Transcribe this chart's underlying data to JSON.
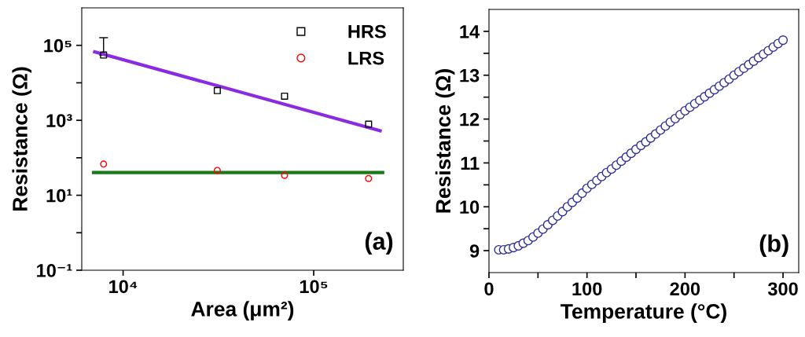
{
  "chart_data": [
    {
      "type": "scatter",
      "xlabel": "Area (μm²)",
      "ylabel": "Resistance (Ω)",
      "log": "xy",
      "xlim": [
        6070,
        295000
      ],
      "ylim": [
        0.1,
        1000000
      ],
      "xticks": [
        {
          "value": 10000,
          "label": "10⁴"
        },
        {
          "value": 100000,
          "label": "10⁵"
        }
      ],
      "yticks": [
        {
          "value": 0.1,
          "label": "10⁻¹"
        },
        {
          "value": 1,
          "label": null
        },
        {
          "value": 10,
          "label": "10¹"
        },
        {
          "value": 100,
          "label": null
        },
        {
          "value": 1000,
          "label": "10³"
        },
        {
          "value": 10000,
          "label": null
        },
        {
          "value": 100000,
          "label": "10⁵"
        }
      ],
      "x": [
        7900,
        31200,
        70300,
        194000
      ],
      "legend": "top right",
      "grid": false,
      "series": [
        {
          "name": "HRS",
          "type": "scatter",
          "marker": "square",
          "color": "#000000",
          "values": [
            55000,
            6200,
            4400,
            790
          ],
          "errors": [
            [
              55000,
              160000
            ],
            null,
            null,
            null
          ]
        },
        {
          "name": "LRS",
          "type": "scatter",
          "marker": "circle",
          "color": "#ff0000",
          "values": [
            68,
            46,
            34,
            28
          ]
        },
        {
          "type": "line",
          "color": "#8a2be2",
          "x": [
            7100,
            223000
          ],
          "values": [
            67000,
            525
          ]
        },
        {
          "type": "line",
          "color": "#1a7a1a",
          "x": [
            7000,
            230000
          ],
          "values": [
            40.5,
            40.5
          ]
        }
      ],
      "annotations": [
        "(a)"
      ]
    },
    {
      "type": "scatter",
      "xlabel": "Temperature (°C)",
      "ylabel": "Resistance (Ω)",
      "xlim": [
        0,
        316
      ],
      "ylim": [
        8.5,
        14.5
      ],
      "xticks": [
        0,
        {
          "value": 50,
          "label": null
        },
        100,
        {
          "value": 150,
          "label": null
        },
        200,
        {
          "value": 250,
          "label": null
        },
        300
      ],
      "yticks": [
        9,
        {
          "value": 9.5,
          "label": null
        },
        10,
        {
          "value": 10.5,
          "label": null
        },
        11,
        {
          "value": 11.5,
          "label": null
        },
        12,
        {
          "value": 12.5,
          "label": null
        },
        13,
        {
          "value": 13.5,
          "label": null
        },
        14
      ],
      "marker": "circle",
      "grid": false,
      "legend": false,
      "series": [
        {
          "color": "#2e2e9a",
          "x": [
            10,
            15,
            20,
            25,
            30,
            35,
            40,
            45,
            50,
            55,
            60,
            65,
            70,
            75,
            80,
            85,
            90,
            95,
            100,
            105,
            110,
            115,
            120,
            125,
            130,
            135,
            140,
            145,
            150,
            155,
            160,
            165,
            170,
            175,
            180,
            185,
            190,
            195,
            200,
            205,
            210,
            215,
            220,
            225,
            230,
            235,
            240,
            245,
            250,
            255,
            260,
            265,
            270,
            275,
            280,
            285,
            290,
            295,
            300
          ],
          "values": [
            9.02,
            9.02,
            9.04,
            9.07,
            9.11,
            9.17,
            9.23,
            9.31,
            9.4,
            9.49,
            9.59,
            9.69,
            9.79,
            9.89,
            10.0,
            10.1,
            10.2,
            10.31,
            10.42,
            10.51,
            10.6,
            10.69,
            10.78,
            10.86,
            10.95,
            11.04,
            11.13,
            11.22,
            11.31,
            11.4,
            11.48,
            11.57,
            11.66,
            11.75,
            11.84,
            11.93,
            12.01,
            12.1,
            12.19,
            12.27,
            12.35,
            12.43,
            12.51,
            12.59,
            12.67,
            12.75,
            12.83,
            12.91,
            13.0,
            13.08,
            13.16,
            13.24,
            13.32,
            13.4,
            13.48,
            13.56,
            13.64,
            13.72,
            13.8
          ]
        }
      ],
      "annotations": [
        "(b)"
      ]
    }
  ]
}
